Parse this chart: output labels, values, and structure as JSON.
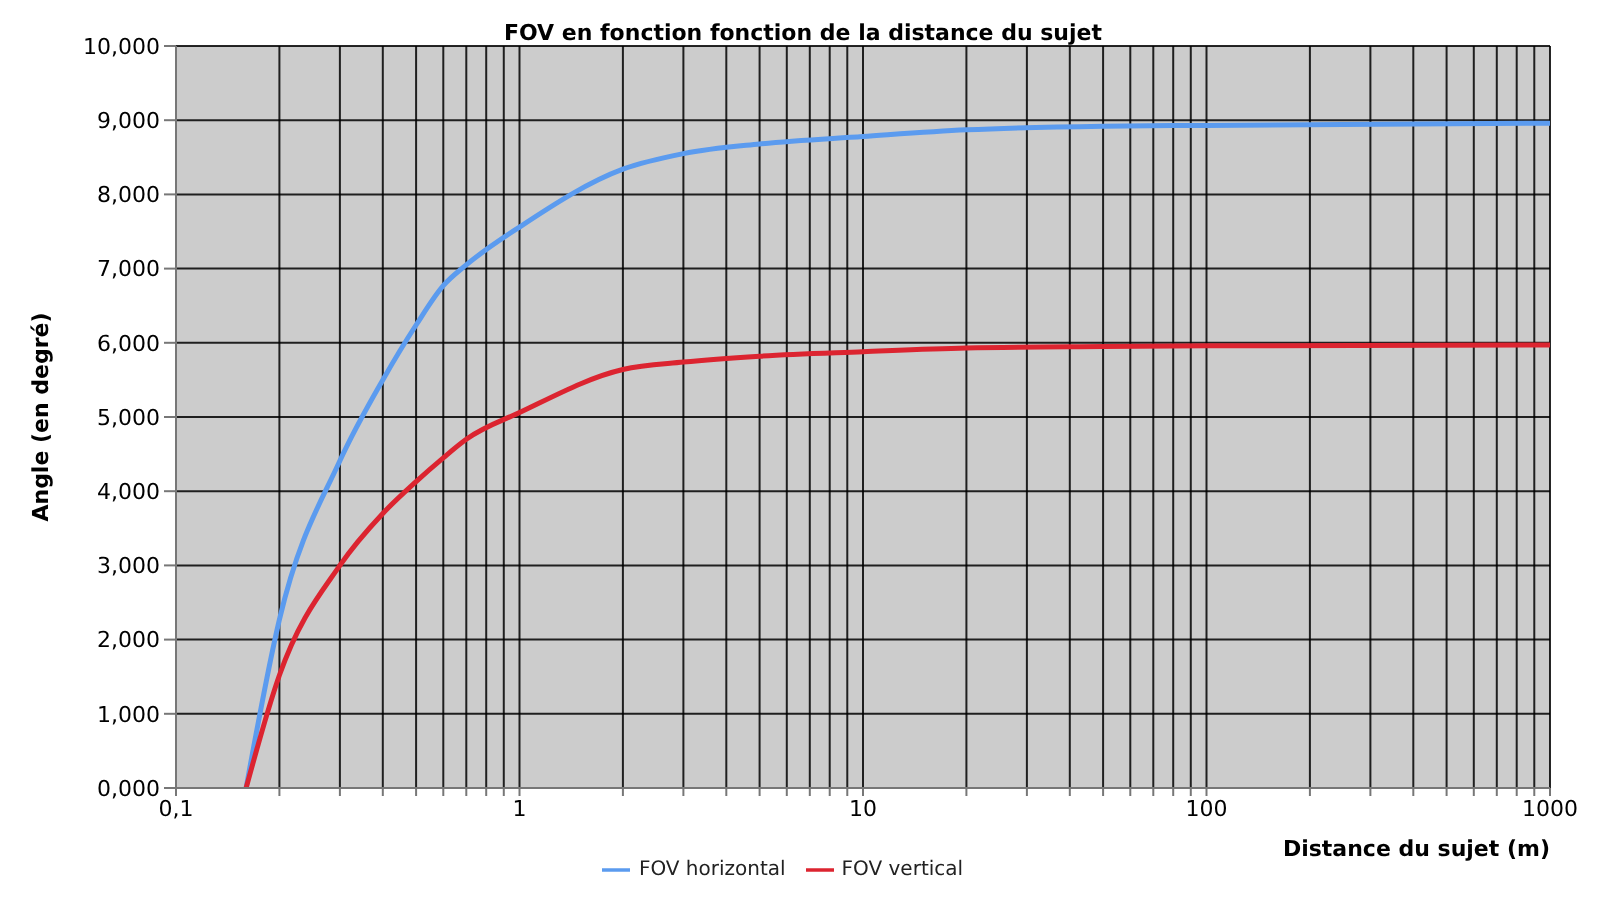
{
  "chart_data": {
    "type": "line",
    "title": "FOV en fonction fonction de la distance du sujet",
    "xlabel": "Distance du sujet (m)",
    "ylabel": "Angle (en degré)",
    "log": "x",
    "grid": true,
    "legend": "bottom",
    "marker": "none",
    "line_style": "solid",
    "x": [
      0.16,
      0.2,
      0.3,
      0.4,
      0.5,
      0.6,
      0.7,
      1,
      2,
      3,
      5,
      10,
      20,
      50,
      100,
      1000
    ],
    "series": [
      {
        "name": "FOV horizontal",
        "color": "#5b9bef",
        "values": [
          0,
          2.27,
          4.41,
          5.5,
          6.24,
          6.77,
          7.05,
          7.56,
          8.34,
          8.55,
          8.68,
          8.78,
          8.87,
          8.92,
          8.93,
          8.96
        ]
      },
      {
        "name": "FOV vertical",
        "color": "#dc2430",
        "values": [
          0,
          1.52,
          3.0,
          3.7,
          4.13,
          4.45,
          4.7,
          5.06,
          5.64,
          5.74,
          5.82,
          5.88,
          5.93,
          5.95,
          5.96,
          5.97
        ]
      }
    ],
    "xlim": [
      0.1,
      1000
    ],
    "xticks": [
      {
        "value": 0.1,
        "label": "0,1"
      },
      {
        "value": 0.2,
        "label": null
      },
      {
        "value": 0.3,
        "label": null
      },
      {
        "value": 0.4,
        "label": null
      },
      {
        "value": 0.5,
        "label": null
      },
      {
        "value": 0.6,
        "label": null
      },
      {
        "value": 0.7,
        "label": null
      },
      {
        "value": 0.8,
        "label": null
      },
      {
        "value": 0.9,
        "label": null
      },
      1,
      {
        "value": 2,
        "label": null
      },
      {
        "value": 3,
        "label": null
      },
      {
        "value": 4,
        "label": null
      },
      {
        "value": 5,
        "label": null
      },
      {
        "value": 6,
        "label": null
      },
      {
        "value": 7,
        "label": null
      },
      {
        "value": 8,
        "label": null
      },
      {
        "value": 9,
        "label": null
      },
      10,
      {
        "value": 20,
        "label": null
      },
      {
        "value": 30,
        "label": null
      },
      {
        "value": 40,
        "label": null
      },
      {
        "value": 50,
        "label": null
      },
      {
        "value": 60,
        "label": null
      },
      {
        "value": 70,
        "label": null
      },
      {
        "value": 80,
        "label": null
      },
      {
        "value": 90,
        "label": null
      },
      100,
      {
        "value": 200,
        "label": null
      },
      {
        "value": 300,
        "label": null
      },
      {
        "value": 400,
        "label": null
      },
      {
        "value": 500,
        "label": null
      },
      {
        "value": 600,
        "label": null
      },
      {
        "value": 700,
        "label": null
      },
      {
        "value": 800,
        "label": null
      },
      {
        "value": 900,
        "label": null
      },
      1000
    ],
    "ylim": [
      0,
      10
    ],
    "yticks": [
      {
        "value": 0,
        "label": "0,000"
      },
      {
        "value": 1,
        "label": "1,000"
      },
      {
        "value": 2,
        "label": "2,000"
      },
      {
        "value": 3,
        "label": "3,000"
      },
      {
        "value": 4,
        "label": "4,000"
      },
      {
        "value": 5,
        "label": "5,000"
      },
      {
        "value": 6,
        "label": "6,000"
      },
      {
        "value": 7,
        "label": "7,000"
      },
      {
        "value": 8,
        "label": "8,000"
      },
      {
        "value": 9,
        "label": "9,000"
      },
      {
        "value": 10,
        "label": "10,000"
      }
    ]
  }
}
